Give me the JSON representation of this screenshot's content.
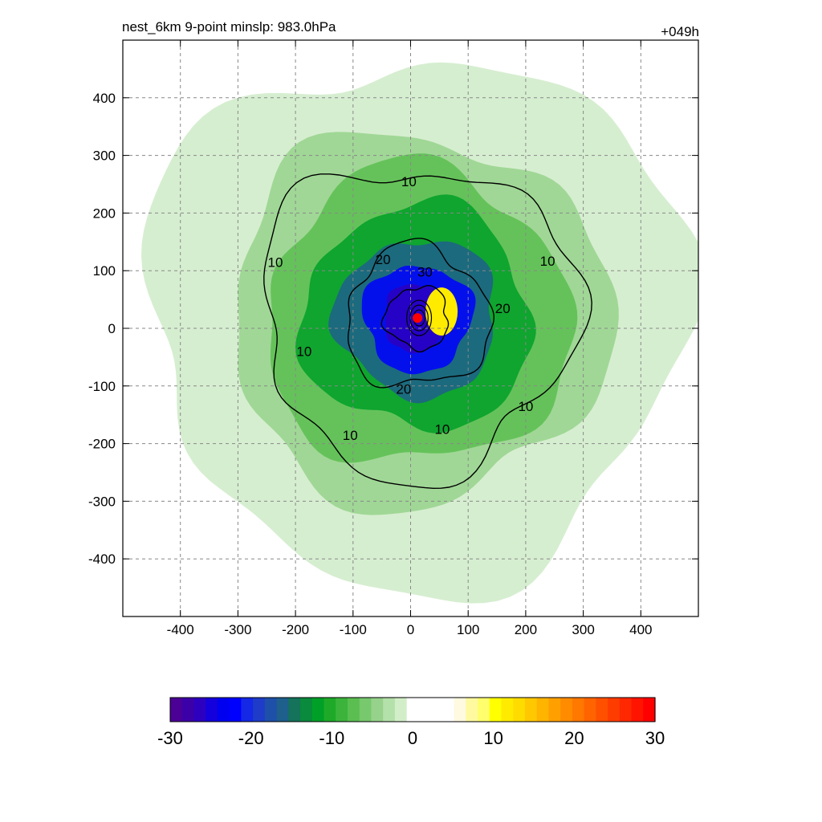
{
  "chart_data": {
    "type": "heatmap",
    "title_left": "nest_6km  9-point minslp: 983.0hPa",
    "title_right": "+049h",
    "xlabel": "",
    "ylabel": "",
    "xlim": [
      -500,
      500
    ],
    "ylim": [
      -500,
      500
    ],
    "grid": true,
    "x_ticks": [
      -400,
      -300,
      -200,
      -100,
      0,
      100,
      200,
      300,
      400
    ],
    "y_ticks": [
      400,
      300,
      200,
      100,
      0,
      -100,
      -200,
      -300,
      -400
    ],
    "x_tick_labels": [
      "-400",
      "-300",
      "-200",
      "-100",
      "0",
      "100",
      "200",
      "300",
      "400"
    ],
    "y_tick_labels": [
      "400",
      "300",
      "200",
      "100",
      "0",
      "-100",
      "-200",
      "-300",
      "-400"
    ],
    "center_marker": {
      "x": 12,
      "y": 18,
      "color": "#ff0000"
    },
    "shading_rings": [
      {
        "radius": 470,
        "value": -2.5
      },
      {
        "radius": 330,
        "value": -4
      },
      {
        "radius": 265,
        "value": -7
      },
      {
        "radius": 200,
        "value": -11
      },
      {
        "radius": 140,
        "value": -16
      },
      {
        "radius": 95,
        "value": -22
      },
      {
        "radius": 60,
        "value": -26
      }
    ],
    "contours": [
      {
        "level": 10,
        "label": "10",
        "radius": 275
      },
      {
        "level": 20,
        "label": "20",
        "radius": 125
      },
      {
        "level": 30,
        "label": "30",
        "radius": 55
      }
    ],
    "contour_labels": [
      {
        "text": "10",
        "x": -3,
        "y": 255
      },
      {
        "text": "10",
        "x": -235,
        "y": 115
      },
      {
        "text": "10",
        "x": 238,
        "y": 117
      },
      {
        "text": "10",
        "x": -185,
        "y": -40
      },
      {
        "text": "10",
        "x": 200,
        "y": -135
      },
      {
        "text": "10",
        "x": -105,
        "y": -185
      },
      {
        "text": "10",
        "x": 55,
        "y": -175
      },
      {
        "text": "20",
        "x": -48,
        "y": 120
      },
      {
        "text": "20",
        "x": 160,
        "y": 35
      },
      {
        "text": "20",
        "x": -12,
        "y": -105
      },
      {
        "text": "30",
        "x": 25,
        "y": 98
      }
    ],
    "colorbar": {
      "min": -30,
      "max": 30,
      "tick_values": [
        -30,
        -20,
        -10,
        0,
        10,
        20,
        30
      ],
      "tick_labels": [
        "-30",
        "-20",
        "-10",
        "0",
        "10",
        "20",
        "30"
      ],
      "colors": [
        "#4b0096",
        "#3c00a8",
        "#2d00c0",
        "#1400dc",
        "#0000f0",
        "#0000ff",
        "#1428e6",
        "#1e3cc8",
        "#1e50aa",
        "#1e5f8c",
        "#14735a",
        "#0a8a3c",
        "#00a028",
        "#1eaa28",
        "#3cb43c",
        "#5abe50",
        "#78c86e",
        "#96d28c",
        "#b4e0aa",
        "#d2eec8",
        "#ffffff",
        "#ffffff",
        "#ffffff",
        "#ffffff",
        "#fffae0",
        "#fffaa0",
        "#ffff6e",
        "#ffff00",
        "#ffeb00",
        "#ffdc00",
        "#ffc800",
        "#ffb400",
        "#ffa000",
        "#ff8c00",
        "#ff7800",
        "#ff6400",
        "#ff5000",
        "#ff3c00",
        "#ff2800",
        "#ff1400",
        "#ff0000"
      ]
    }
  }
}
